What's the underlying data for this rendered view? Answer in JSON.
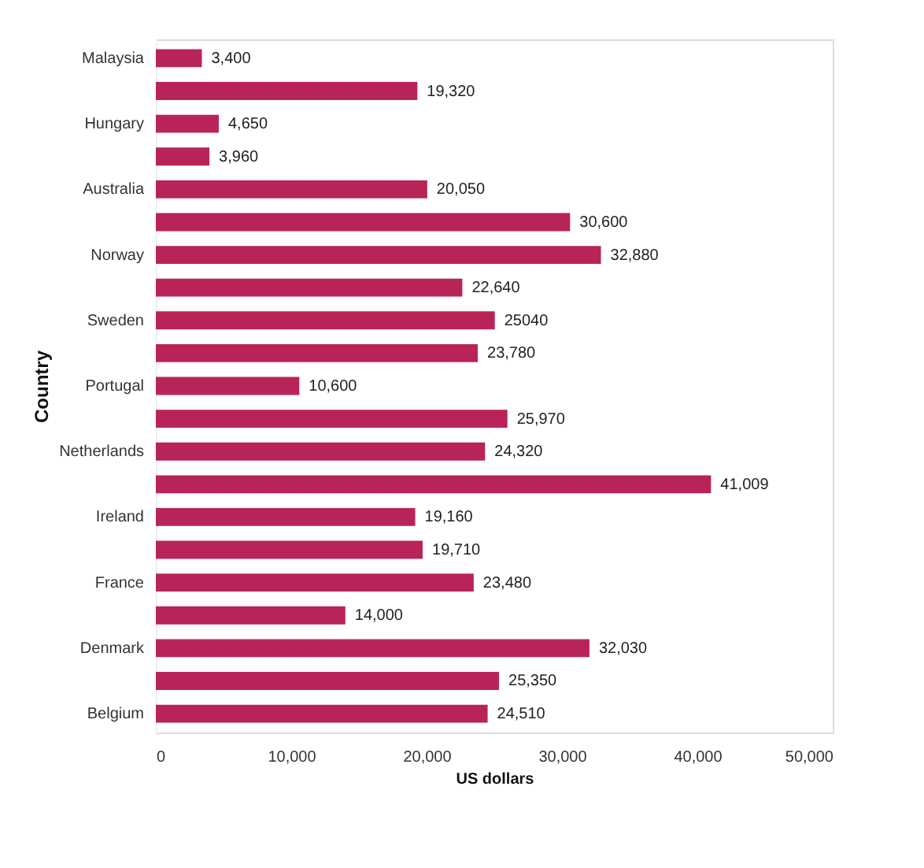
{
  "chart_data": {
    "type": "bar",
    "orientation": "horizontal",
    "xlabel": "US dollars",
    "ylabel": "Country",
    "categories": [
      "Malaysia",
      null,
      "Hungary",
      null,
      "Australia",
      null,
      "Norway",
      null,
      "Sweden",
      null,
      "Portugal",
      null,
      "Netherlands",
      null,
      "Ireland",
      null,
      "France",
      null,
      "Denmark",
      null,
      "Belgium"
    ],
    "values": [
      3400,
      19320,
      4650,
      3960,
      20050,
      30600,
      32880,
      22640,
      25040,
      23780,
      10600,
      25970,
      24320,
      41009,
      19160,
      19710,
      23480,
      14000,
      32030,
      25350,
      24510
    ],
    "value_labels": [
      "3,400",
      "19,320",
      "4,650",
      "3,960",
      "20,050",
      "30,600",
      "32,880",
      "22,640",
      "25040",
      "23,780",
      "10,600",
      "25,970",
      "24,320",
      "41,009",
      "19,160",
      "19,710",
      "23,480",
      "14,000",
      "32,030",
      "25,350",
      "24,510"
    ],
    "color": "#b8245a",
    "xlim": [
      0,
      50000
    ],
    "xticks": [
      0,
      {
        "value": 10000,
        "label": "10,000"
      },
      {
        "value": 20000,
        "label": "20,000"
      },
      {
        "value": 30000,
        "label": "30,000"
      },
      {
        "value": 40000,
        "label": "40,000"
      },
      {
        "value": 50000,
        "label": "50,000"
      }
    ],
    "grid": false
  }
}
